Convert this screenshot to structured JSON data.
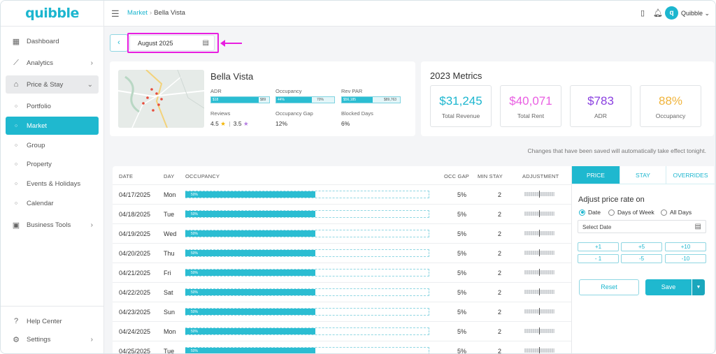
{
  "app": {
    "logo": "quibble"
  },
  "sidebar": {
    "items": [
      {
        "label": "Dashboard",
        "icon": "dashboard-icon"
      },
      {
        "label": "Analytics",
        "icon": "analytics-icon"
      },
      {
        "label": "Price & Stay",
        "icon": "price-stay-icon"
      },
      {
        "label": "Portfolio"
      },
      {
        "label": "Market"
      },
      {
        "label": "Group"
      },
      {
        "label": "Property"
      },
      {
        "label": "Events & Holidays"
      },
      {
        "label": "Calendar"
      },
      {
        "label": "Business Tools",
        "icon": "briefcase-icon"
      },
      {
        "label": "Help Center",
        "icon": "help-icon"
      },
      {
        "label": "Settings",
        "icon": "gear-icon"
      }
    ]
  },
  "topbar": {
    "breadcrumb_parent": "Market",
    "breadcrumb_current": "Bella Vista",
    "user_name": "Quibble",
    "avatar_letter": "q"
  },
  "date_picker": {
    "value": "August 2025"
  },
  "property": {
    "name": "Bella Vista",
    "adr_label": "ADR",
    "adr_low": "$18",
    "adr_high": "$89",
    "adr_fill": 0.82,
    "occupancy_label": "Occupancy",
    "occupancy_low": "44%",
    "occupancy_high": "70%",
    "occupancy_fill": 0.62,
    "revpar_label": "Rev PAR",
    "revpar_low": "$56,185",
    "revpar_high": "$89,763",
    "revpar_fill": 0.53,
    "reviews_label": "Reviews",
    "review_score_1": "4.5",
    "review_score_2": "3.5",
    "occ_gap_label": "Occupancy Gap",
    "occ_gap_value": "12%",
    "blocked_label": "Blocked Days",
    "blocked_value": "6%"
  },
  "metrics": {
    "title": "2023 Metrics",
    "items": [
      {
        "value": "$31,245",
        "label": "Total Revenue",
        "color": "#1cb6cf"
      },
      {
        "value": "$40,071",
        "label": "Total Rent",
        "color": "#e95ee2"
      },
      {
        "value": "$783",
        "label": "ADR",
        "color": "#8a3fe0"
      },
      {
        "value": "88%",
        "label": "Occupancy",
        "color": "#f0b43c"
      }
    ]
  },
  "notice": "Changes that have been saved will automatically take effect tonight.",
  "table": {
    "headers": {
      "date": "DATE",
      "day": "DAY",
      "occupancy": "OCCUPANCY",
      "occ_gap": "OCC GAP",
      "min_stay": "MIN STAY",
      "adjustment": "ADJUSTMENT"
    },
    "rows": [
      {
        "date": "04/17/2025",
        "day": "Mon",
        "occ_label": "50%",
        "occ_fill": 0.535,
        "occ_gap": "5%",
        "min_stay": "2"
      },
      {
        "date": "04/18/2025",
        "day": "Tue",
        "occ_label": "50%",
        "occ_fill": 0.535,
        "occ_gap": "5%",
        "min_stay": "2"
      },
      {
        "date": "04/19/2025",
        "day": "Wed",
        "occ_label": "50%",
        "occ_fill": 0.535,
        "occ_gap": "5%",
        "min_stay": "2"
      },
      {
        "date": "04/20/2025",
        "day": "Thu",
        "occ_label": "50%",
        "occ_fill": 0.535,
        "occ_gap": "5%",
        "min_stay": "2"
      },
      {
        "date": "04/21/2025",
        "day": "Fri",
        "occ_label": "50%",
        "occ_fill": 0.535,
        "occ_gap": "5%",
        "min_stay": "2"
      },
      {
        "date": "04/22/2025",
        "day": "Sat",
        "occ_label": "50%",
        "occ_fill": 0.535,
        "occ_gap": "5%",
        "min_stay": "2"
      },
      {
        "date": "04/23/2025",
        "day": "Sun",
        "occ_label": "50%",
        "occ_fill": 0.535,
        "occ_gap": "5%",
        "min_stay": "2"
      },
      {
        "date": "04/24/2025",
        "day": "Mon",
        "occ_label": "50%",
        "occ_fill": 0.535,
        "occ_gap": "5%",
        "min_stay": "2"
      },
      {
        "date": "04/25/2025",
        "day": "Tue",
        "occ_label": "50%",
        "occ_fill": 0.535,
        "occ_gap": "5%",
        "min_stay": "2"
      }
    ]
  },
  "panel": {
    "tabs": [
      "PRICE",
      "STAY",
      "OVERRIDES"
    ],
    "title": "Adjust price rate on",
    "radios": [
      "Date",
      "Days of Week",
      "All Days"
    ],
    "select_date": "Select Date",
    "steps_up": [
      "+1",
      "+5",
      "+10"
    ],
    "steps_down": [
      "- 1",
      "-5",
      "-10"
    ],
    "reset": "Reset",
    "save": "Save"
  }
}
